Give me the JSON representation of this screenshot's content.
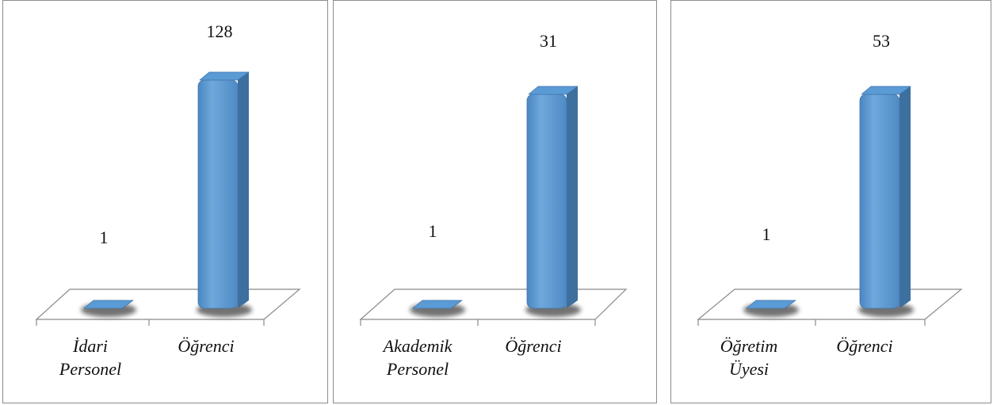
{
  "chart_data": [
    {
      "type": "bar",
      "categories": [
        [
          "İdari",
          "Personel"
        ],
        [
          "Öğrenci"
        ]
      ],
      "values": [
        1,
        128
      ],
      "data_labels": [
        "1",
        "128"
      ],
      "bar_color": "#5B9BD5"
    },
    {
      "type": "bar",
      "categories": [
        [
          "Akademik",
          "Personel"
        ],
        [
          "Öğrenci"
        ]
      ],
      "values": [
        1,
        31
      ],
      "data_labels": [
        "1",
        "31"
      ],
      "bar_color": "#5B9BD5"
    },
    {
      "type": "bar",
      "categories": [
        [
          "Öğretim",
          "Üyesi"
        ],
        [
          "Öğrenci"
        ]
      ],
      "values": [
        1,
        53
      ],
      "data_labels": [
        "1",
        "53"
      ],
      "bar_color": "#5B9BD5"
    }
  ]
}
